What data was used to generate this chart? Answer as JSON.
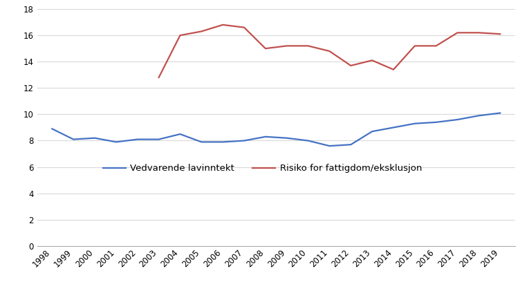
{
  "years_blue": [
    1998,
    1999,
    2000,
    2001,
    2002,
    2003,
    2004,
    2005,
    2006,
    2007,
    2008,
    2009,
    2010,
    2011,
    2012,
    2013,
    2014,
    2015,
    2016,
    2017,
    2018,
    2019
  ],
  "values_blue": [
    8.9,
    8.1,
    8.2,
    7.9,
    8.1,
    8.1,
    8.5,
    7.9,
    7.9,
    8.0,
    8.3,
    8.2,
    8.0,
    7.6,
    7.7,
    8.7,
    9.0,
    9.3,
    9.4,
    9.6,
    9.9,
    10.1
  ],
  "years_red": [
    2003,
    2004,
    2005,
    2006,
    2007,
    2008,
    2009,
    2010,
    2011,
    2012,
    2013,
    2014,
    2015,
    2016,
    2017,
    2018,
    2019
  ],
  "values_red": [
    12.8,
    16.0,
    16.3,
    16.8,
    16.6,
    15.0,
    15.2,
    15.2,
    14.8,
    13.7,
    14.1,
    13.4,
    15.2,
    15.2,
    16.2,
    16.2,
    16.1
  ],
  "blue_color": "#4472C4",
  "red_color": "#C0504D",
  "legend_blue": "Vedvarende lavinntekt",
  "legend_red": "Risiko for fattigdom/eksklusjon",
  "ylim": [
    0,
    18
  ],
  "yticks": [
    0,
    2,
    4,
    6,
    8,
    10,
    12,
    14,
    16,
    18
  ],
  "bg_color": "#FFFFFF",
  "grid_color": "#D9D9D9",
  "linewidth": 1.6,
  "tick_fontsize": 8.5,
  "legend_fontsize": 9.5
}
